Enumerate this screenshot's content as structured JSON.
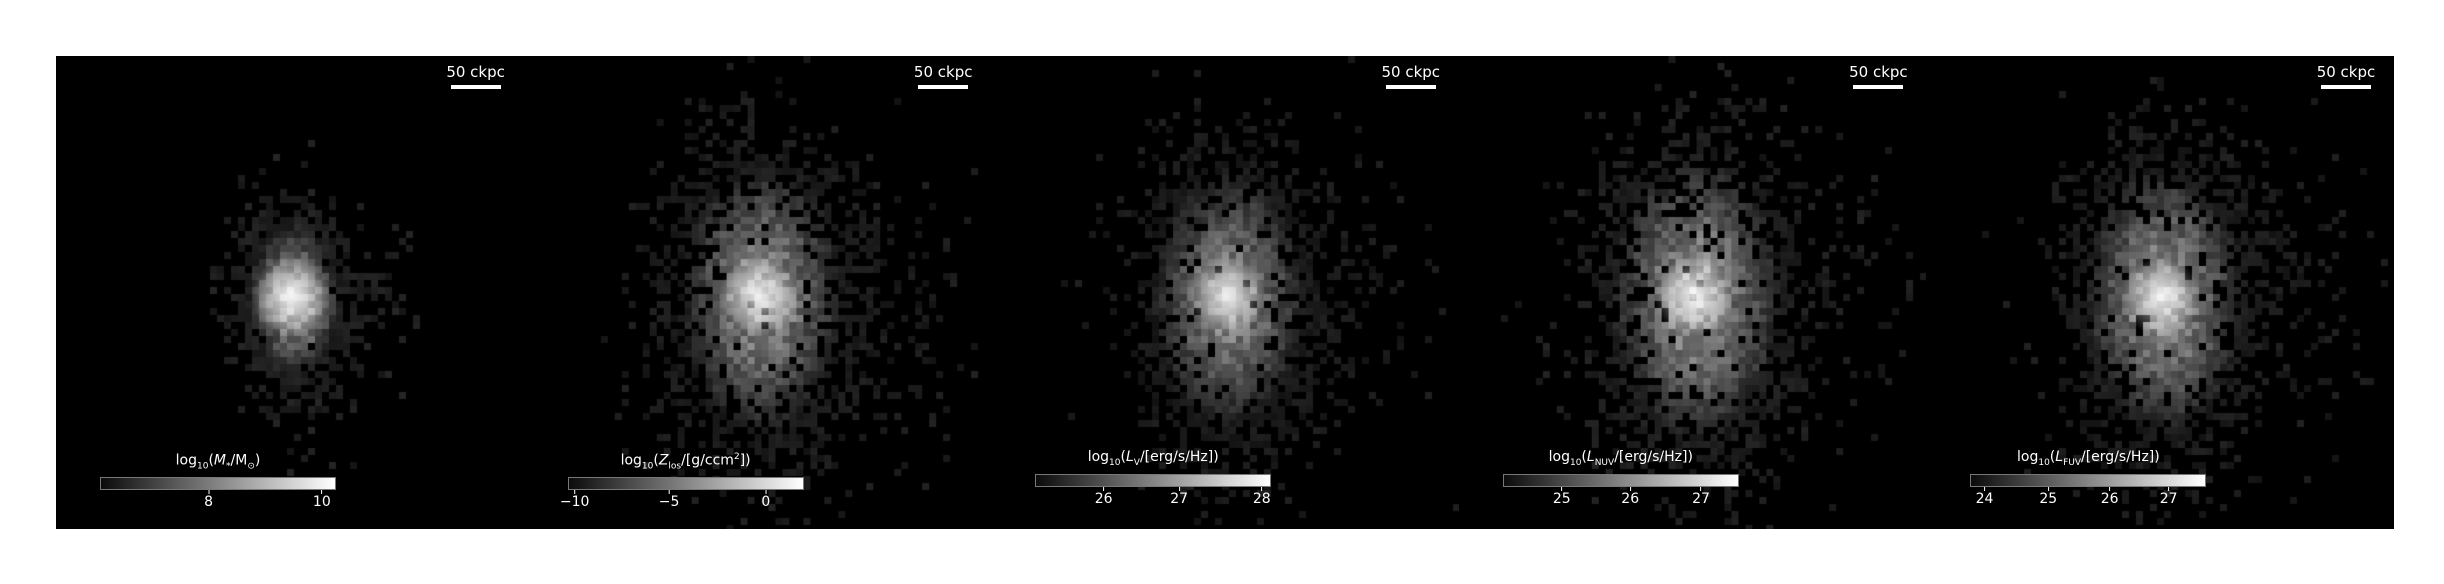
{
  "panels": [
    {
      "scalebar": "50 ckpc",
      "colorbar": {
        "prefix": "log",
        "sub": "10",
        "open": "(",
        "var": "M",
        "varsub": "*",
        "rest": "/M",
        "rest_sub": "⊙",
        "close": ")",
        "sup": "",
        "ticks": [
          {
            "label": "8",
            "frac": 0.46
          },
          {
            "label": "10",
            "frac": 0.94
          }
        ]
      },
      "image": {
        "spread": 0.55,
        "density": 0.5,
        "core": 1.0
      }
    },
    {
      "scalebar": "50 ckpc",
      "colorbar": {
        "prefix": "log",
        "sub": "10",
        "open": "(",
        "var": "Z",
        "varsub": "los",
        "rest": "/[g/ccm",
        "rest_sub": "",
        "close": "])",
        "sup": "2",
        "ticks": [
          {
            "label": "−10",
            "frac": 0.03
          },
          {
            "label": "−5",
            "frac": 0.43
          },
          {
            "label": "0",
            "frac": 0.84
          }
        ]
      },
      "image": {
        "spread": 1.0,
        "density": 0.75,
        "core": 0.9
      }
    },
    {
      "scalebar": "50 ckpc",
      "colorbar": {
        "prefix": "log",
        "sub": "10",
        "open": "(",
        "var": "L",
        "varsub": "V",
        "rest": "/[erg/s/Hz]",
        "rest_sub": "",
        "close": ")",
        "sup": "",
        "ticks": [
          {
            "label": "26",
            "frac": 0.29
          },
          {
            "label": "27",
            "frac": 0.61
          },
          {
            "label": "28",
            "frac": 0.96
          }
        ]
      },
      "image": {
        "spread": 0.95,
        "density": 0.7,
        "core": 0.85
      }
    },
    {
      "scalebar": "50 ckpc",
      "colorbar": {
        "prefix": "log",
        "sub": "10",
        "open": "(",
        "var": "L",
        "varsub": "NUV",
        "rest": "/[erg/s/Hz]",
        "rest_sub": "",
        "close": ")",
        "sup": "",
        "ticks": [
          {
            "label": "25",
            "frac": 0.25
          },
          {
            "label": "26",
            "frac": 0.54
          },
          {
            "label": "27",
            "frac": 0.84
          }
        ]
      },
      "image": {
        "spread": 1.05,
        "density": 0.8,
        "core": 0.95
      }
    },
    {
      "scalebar": "50 ckpc",
      "colorbar": {
        "prefix": "log",
        "sub": "10",
        "open": "(",
        "var": "L",
        "varsub": "FUV",
        "rest": "/[erg/s/Hz]",
        "rest_sub": "",
        "close": ")",
        "sup": "",
        "ticks": [
          {
            "label": "24",
            "frac": 0.06
          },
          {
            "label": "25",
            "frac": 0.33
          },
          {
            "label": "26",
            "frac": 0.59
          },
          {
            "label": "27",
            "frac": 0.84
          }
        ]
      },
      "image": {
        "spread": 1.0,
        "density": 0.75,
        "core": 0.9
      }
    }
  ]
}
